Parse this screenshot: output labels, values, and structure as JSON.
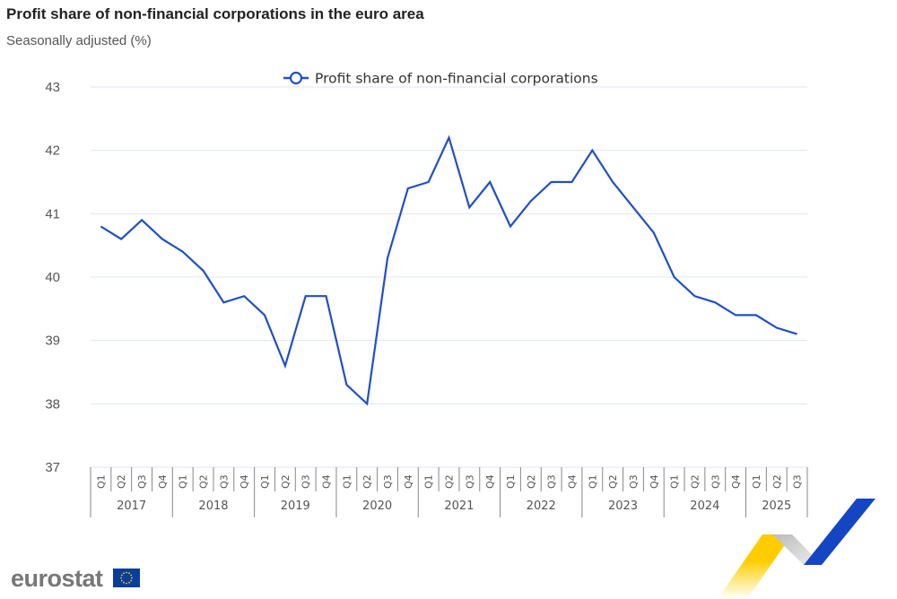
{
  "header": {
    "title": "Profit share of non-financial corporations in the euro area",
    "subtitle": "Seasonally adjusted (%)"
  },
  "footer": {
    "logo_text": "eurostat"
  },
  "colors": {
    "line": "#1f4fc8",
    "grid": "#dfe5f0",
    "axis": "#888888"
  },
  "chart_data": {
    "type": "line",
    "title": "Profit share of non-financial corporations in the euro area",
    "subtitle": "Seasonally adjusted (%)",
    "xlabel": "",
    "ylabel": "",
    "ylim": [
      37,
      43
    ],
    "yticks": [
      37,
      38,
      39,
      40,
      41,
      42,
      43
    ],
    "grid": true,
    "legend_position": "top-center",
    "years": [
      "2017",
      "2018",
      "2019",
      "2020",
      "2021",
      "2022",
      "2023",
      "2024",
      "2025"
    ],
    "categories": [
      "2017-Q1",
      "2017-Q2",
      "2017-Q3",
      "2017-Q4",
      "2018-Q1",
      "2018-Q2",
      "2018-Q3",
      "2018-Q4",
      "2019-Q1",
      "2019-Q2",
      "2019-Q3",
      "2019-Q4",
      "2020-Q1",
      "2020-Q2",
      "2020-Q3",
      "2020-Q4",
      "2021-Q1",
      "2021-Q2",
      "2021-Q3",
      "2021-Q4",
      "2022-Q1",
      "2022-Q2",
      "2022-Q3",
      "2022-Q4",
      "2023-Q1",
      "2023-Q2",
      "2023-Q3",
      "2023-Q4",
      "2024-Q1",
      "2024-Q2",
      "2024-Q3",
      "2024-Q4",
      "2025-Q1",
      "2025-Q2",
      "2025-Q3"
    ],
    "series": [
      {
        "name": "Profit share of non-financial corporations",
        "values": [
          40.8,
          40.6,
          40.9,
          40.6,
          40.4,
          40.1,
          39.6,
          39.7,
          39.4,
          38.6,
          39.7,
          39.7,
          38.3,
          38.0,
          40.3,
          41.4,
          41.5,
          42.2,
          41.1,
          41.5,
          40.8,
          41.2,
          41.5,
          41.5,
          42.0,
          41.5,
          41.1,
          40.7,
          40.0,
          39.7,
          39.6,
          39.4,
          39.4,
          39.2,
          39.1
        ]
      }
    ]
  }
}
